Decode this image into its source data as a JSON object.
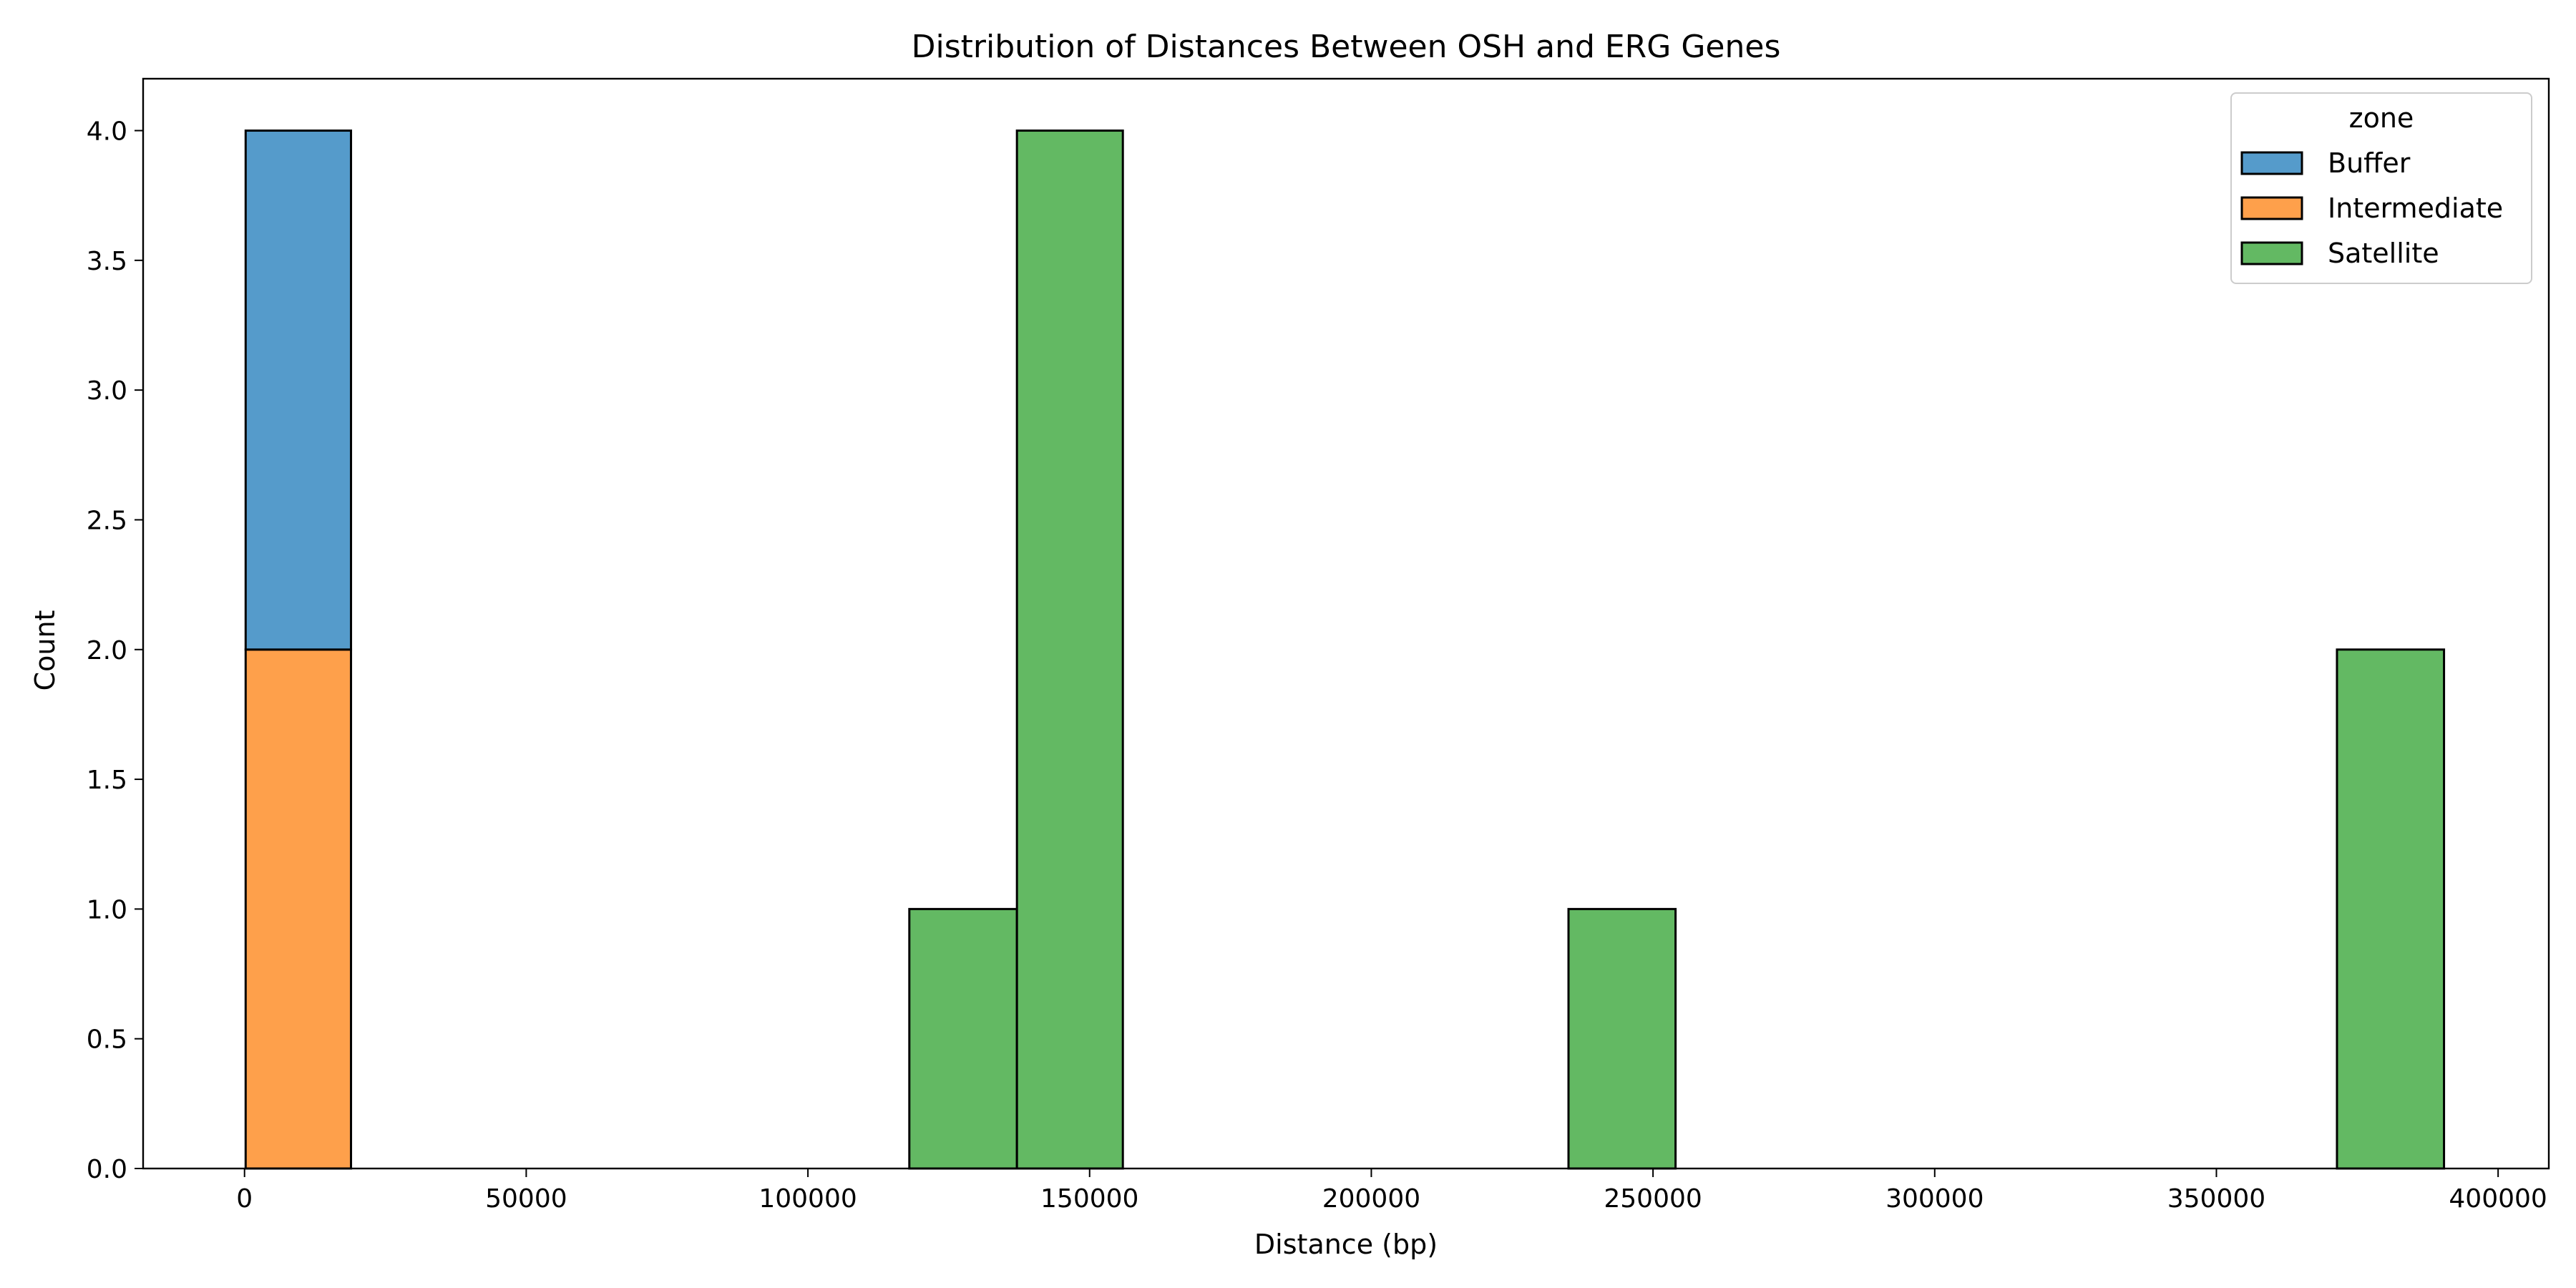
{
  "chart_data": {
    "type": "bar",
    "subtype": "stacked-histogram",
    "title": "Distribution of Distances Between OSH and ERG Genes",
    "xlabel": "Distance (bp)",
    "ylabel": "Count",
    "xlim": [
      -18000,
      409000
    ],
    "ylim": [
      0,
      4.2
    ],
    "xticks": [
      0,
      50000,
      100000,
      150000,
      200000,
      250000,
      300000,
      350000,
      400000
    ],
    "xtick_labels": [
      "0",
      "50000",
      "100000",
      "150000",
      "200000",
      "250000",
      "300000",
      "350000",
      "400000"
    ],
    "yticks": [
      0,
      0.5,
      1,
      1.5,
      2,
      2.5,
      3,
      3.5,
      4
    ],
    "ytick_labels": [
      "0.0",
      "0.5",
      "1.0",
      "1.5",
      "2.0",
      "2.5",
      "3.0",
      "3.5",
      "4.0"
    ],
    "grid": false,
    "legend": {
      "title": "zone",
      "placement": "top-right"
    },
    "series": [
      {
        "name": "Buffer",
        "color": "#559bcb",
        "bins": [
          {
            "x0": 200,
            "x1": 18900,
            "count": 2
          }
        ]
      },
      {
        "name": "Intermediate",
        "color": "#fea04b",
        "bins": [
          {
            "x0": 200,
            "x1": 18900,
            "count": 2
          }
        ]
      },
      {
        "name": "Satellite",
        "color": "#63b963",
        "bins": [
          {
            "x0": 118000,
            "x1": 137100,
            "count": 1
          },
          {
            "x0": 137100,
            "x1": 155900,
            "count": 4
          },
          {
            "x0": 235000,
            "x1": 254000,
            "count": 1
          },
          {
            "x0": 371400,
            "x1": 390400,
            "count": 2
          }
        ]
      }
    ],
    "stack_order": [
      "Intermediate",
      "Buffer",
      "Satellite"
    ]
  }
}
